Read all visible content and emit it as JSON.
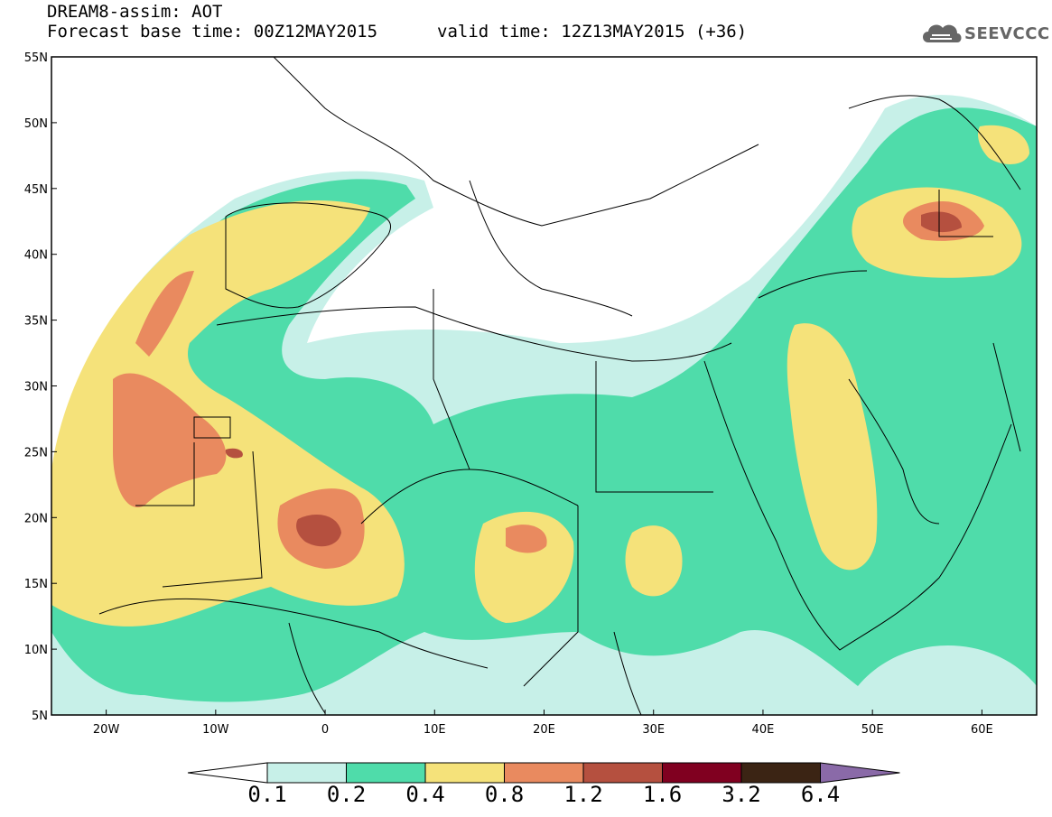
{
  "header": {
    "title_line1": "DREAM8-assim: AOT",
    "title_line2": "Forecast base time: 00Z12MAY2015",
    "valid_time": "valid time: 12Z13MAY2015 (+36)",
    "logo_text": "SEEVCCC"
  },
  "map": {
    "lat_labels": [
      "55N",
      "50N",
      "45N",
      "40N",
      "35N",
      "30N",
      "25N",
      "20N",
      "15N",
      "10N",
      "5N"
    ],
    "lon_labels": [
      "20W",
      "10W",
      "0",
      "10E",
      "20E",
      "30E",
      "40E",
      "50E",
      "60E"
    ],
    "lon_range": [
      -25,
      65
    ],
    "lat_range": [
      5,
      55
    ]
  },
  "colorbar": {
    "labels": [
      "0.1",
      "0.2",
      "0.4",
      "0.8",
      "1.2",
      "1.6",
      "3.2",
      "6.4"
    ],
    "colors": {
      "lt01": "#ffffff",
      "c01_02": "#c7f0e8",
      "c02_04": "#4fdcaa",
      "c04_08": "#f5e27a",
      "c08_12": "#e98a5f",
      "c12_16": "#b5503f",
      "c16_32": "#800020",
      "c32_64": "#3b2414",
      "gt64": "#8a6aa8"
    }
  }
}
